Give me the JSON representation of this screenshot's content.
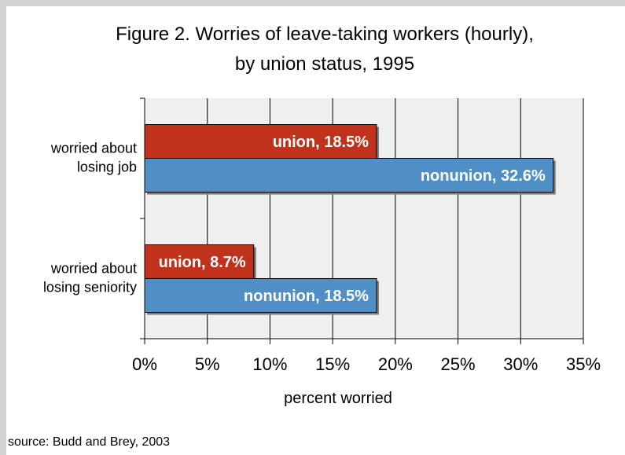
{
  "chart_data": {
    "type": "bar",
    "orientation": "horizontal",
    "title_lines": [
      "Figure 2. Worries of leave-taking workers (hourly),",
      "by union status, 1995"
    ],
    "categories": [
      [
        "worried about",
        "losing job"
      ],
      [
        "worried about",
        "losing seniority"
      ]
    ],
    "series": [
      {
        "name": "union",
        "color": "#c0321c",
        "values": [
          18.5,
          8.7
        ],
        "labels": [
          "union, 18.5%",
          "union, 8.7%"
        ]
      },
      {
        "name": "nonunion",
        "color": "#4f8fc6",
        "values": [
          32.6,
          18.5
        ],
        "labels": [
          "nonunion, 32.6%",
          "nonunion, 18.5%"
        ]
      }
    ],
    "xlim": [
      0,
      35
    ],
    "xticks": [
      0,
      5,
      10,
      15,
      20,
      25,
      30,
      35
    ],
    "xtick_labels": [
      "0%",
      "5%",
      "10%",
      "15%",
      "20%",
      "25%",
      "30%",
      "35%"
    ],
    "xlabel": "percent worried",
    "grid": true,
    "plot_background": "#efefef",
    "source": "source: Budd and Brey, 2003"
  }
}
